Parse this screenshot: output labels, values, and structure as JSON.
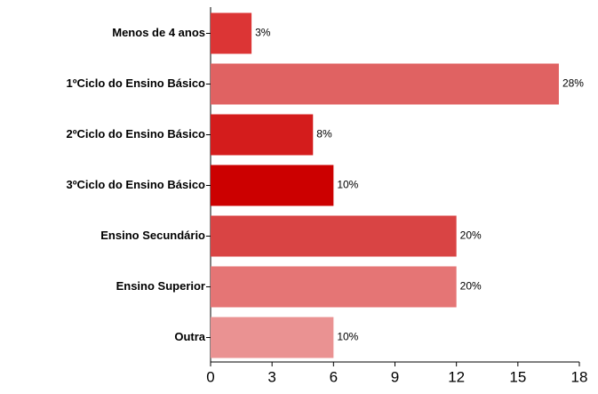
{
  "chart_data": {
    "type": "bar",
    "orientation": "horizontal",
    "categories": [
      "Menos de 4 anos",
      "1ºCiclo do Ensino Básico",
      "2ºCiclo do Ensino Básico",
      "3ºCiclo do Ensino Básico",
      "Ensino Secundário",
      "Ensino Superior",
      "Outra"
    ],
    "values": [
      2,
      17,
      5,
      6,
      12,
      12,
      6
    ],
    "value_labels": [
      "3%",
      "28%",
      "8%",
      "10%",
      "20%",
      "20%",
      "10%"
    ],
    "colors": [
      "#dc3535",
      "#e06262",
      "#d41c1c",
      "#cc0000",
      "#d94444",
      "#e57575",
      "#ea9292"
    ],
    "xlim": [
      0,
      18
    ],
    "xticks": [
      0,
      3,
      6,
      9,
      12,
      15,
      18
    ]
  }
}
